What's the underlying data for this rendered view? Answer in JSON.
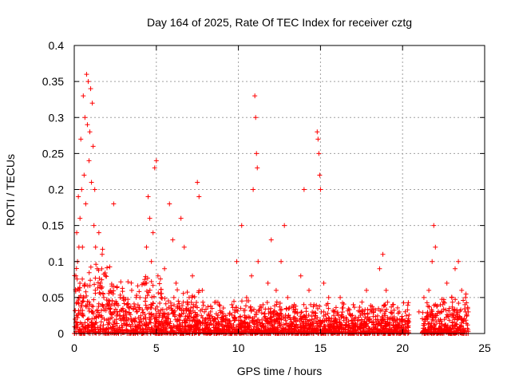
{
  "chart_data": {
    "type": "scatter",
    "title": "Day 164 of 2025, Rate Of TEC Index for receiver cztg",
    "xlabel": "GPS time / hours",
    "ylabel": "ROTI / TECUs",
    "xlim": [
      0,
      25
    ],
    "ylim": [
      0,
      0.4
    ],
    "xticks": [
      0,
      5,
      10,
      15,
      20,
      25
    ],
    "xtick_labels": [
      "0",
      "5",
      "10",
      "15",
      "20",
      "25"
    ],
    "yticks": [
      0,
      0.05,
      0.1,
      0.15,
      0.2,
      0.25,
      0.3,
      0.35,
      0.4
    ],
    "ytick_labels": [
      "0",
      "0.05",
      "0.1",
      "0.15",
      "0.2",
      "0.25",
      "0.3",
      "0.35",
      "0.4"
    ],
    "grid": true,
    "marker": "+",
    "series": [
      {
        "name": "ROTI",
        "color": "#ff0000",
        "points": [
          [
            0.05,
            0.02
          ],
          [
            0.1,
            0.08
          ],
          [
            0.15,
            0.14
          ],
          [
            0.2,
            0.1
          ],
          [
            0.25,
            0.19
          ],
          [
            0.3,
            0.06
          ],
          [
            0.35,
            0.16
          ],
          [
            0.4,
            0.27
          ],
          [
            0.45,
            0.2
          ],
          [
            0.5,
            0.12
          ],
          [
            0.55,
            0.33
          ],
          [
            0.6,
            0.22
          ],
          [
            0.65,
            0.3
          ],
          [
            0.7,
            0.18
          ],
          [
            0.75,
            0.36
          ],
          [
            0.8,
            0.29
          ],
          [
            0.85,
            0.35
          ],
          [
            0.9,
            0.24
          ],
          [
            0.95,
            0.28
          ],
          [
            1.0,
            0.34
          ],
          [
            1.05,
            0.21
          ],
          [
            1.1,
            0.32
          ],
          [
            1.15,
            0.26
          ],
          [
            1.2,
            0.15
          ],
          [
            1.25,
            0.2
          ],
          [
            1.3,
            0.12
          ],
          [
            1.4,
            0.09
          ],
          [
            1.5,
            0.14
          ],
          [
            1.6,
            0.07
          ],
          [
            1.7,
            0.11
          ],
          [
            1.8,
            0.05
          ],
          [
            1.9,
            0.08
          ],
          [
            2.0,
            0.04
          ],
          [
            2.2,
            0.06
          ],
          [
            2.4,
            0.18
          ],
          [
            2.6,
            0.03
          ],
          [
            2.8,
            0.05
          ],
          [
            3.0,
            0.02
          ],
          [
            3.2,
            0.04
          ],
          [
            3.5,
            0.06
          ],
          [
            3.8,
            0.03
          ],
          [
            4.0,
            0.05
          ],
          [
            4.2,
            0.07
          ],
          [
            4.4,
            0.12
          ],
          [
            4.5,
            0.19
          ],
          [
            4.6,
            0.16
          ],
          [
            4.7,
            0.1
          ],
          [
            4.8,
            0.14
          ],
          [
            4.9,
            0.23
          ],
          [
            5.0,
            0.24
          ],
          [
            5.1,
            0.08
          ],
          [
            5.3,
            0.05
          ],
          [
            5.5,
            0.09
          ],
          [
            5.8,
            0.18
          ],
          [
            6.0,
            0.13
          ],
          [
            6.2,
            0.07
          ],
          [
            6.5,
            0.16
          ],
          [
            6.7,
            0.12
          ],
          [
            7.0,
            0.05
          ],
          [
            7.2,
            0.08
          ],
          [
            7.5,
            0.21
          ],
          [
            7.6,
            0.19
          ],
          [
            7.8,
            0.06
          ],
          [
            8.0,
            0.02
          ],
          [
            8.3,
            0.03
          ],
          [
            8.6,
            0.02
          ],
          [
            9.0,
            0.03
          ],
          [
            9.3,
            0.02
          ],
          [
            9.6,
            0.04
          ],
          [
            9.9,
            0.1
          ],
          [
            10.2,
            0.15
          ],
          [
            10.5,
            0.05
          ],
          [
            10.8,
            0.08
          ],
          [
            10.9,
            0.2
          ],
          [
            11.0,
            0.33
          ],
          [
            11.05,
            0.3
          ],
          [
            11.1,
            0.25
          ],
          [
            11.15,
            0.23
          ],
          [
            11.2,
            0.1
          ],
          [
            11.5,
            0.04
          ],
          [
            11.8,
            0.07
          ],
          [
            12.0,
            0.13
          ],
          [
            12.3,
            0.06
          ],
          [
            12.6,
            0.1
          ],
          [
            12.8,
            0.15
          ],
          [
            13.0,
            0.05
          ],
          [
            13.4,
            0.04
          ],
          [
            13.8,
            0.08
          ],
          [
            14.0,
            0.2
          ],
          [
            14.3,
            0.06
          ],
          [
            14.6,
            0.04
          ],
          [
            14.8,
            0.28
          ],
          [
            14.85,
            0.27
          ],
          [
            14.9,
            0.25
          ],
          [
            14.95,
            0.22
          ],
          [
            15.0,
            0.2
          ],
          [
            15.2,
            0.07
          ],
          [
            15.5,
            0.05
          ],
          [
            15.8,
            0.03
          ],
          [
            16.2,
            0.05
          ],
          [
            16.6,
            0.02
          ],
          [
            17.0,
            0.04
          ],
          [
            17.4,
            0.03
          ],
          [
            17.8,
            0.06
          ],
          [
            18.2,
            0.03
          ],
          [
            18.6,
            0.09
          ],
          [
            18.8,
            0.11
          ],
          [
            19.0,
            0.06
          ],
          [
            19.4,
            0.04
          ],
          [
            19.8,
            0.03
          ],
          [
            20.0,
            0.02
          ],
          [
            20.3,
            0.01
          ],
          [
            21.0,
            0.03
          ],
          [
            21.3,
            0.05
          ],
          [
            21.6,
            0.06
          ],
          [
            21.8,
            0.1
          ],
          [
            21.9,
            0.15
          ],
          [
            22.0,
            0.12
          ],
          [
            22.3,
            0.04
          ],
          [
            22.7,
            0.07
          ],
          [
            23.0,
            0.05
          ],
          [
            23.2,
            0.09
          ],
          [
            23.4,
            0.1
          ],
          [
            23.6,
            0.06
          ],
          [
            23.8,
            0.04
          ],
          [
            24.0,
            0.03
          ]
        ],
        "dense_bands": [
          {
            "x_from": 0.0,
            "x_to": 2.2,
            "y_from": 0.0,
            "y_to": 0.14
          },
          {
            "x_from": 2.2,
            "x_to": 5.5,
            "y_from": 0.0,
            "y_to": 0.09
          },
          {
            "x_from": 5.5,
            "x_to": 8.0,
            "y_from": 0.0,
            "y_to": 0.07
          },
          {
            "x_from": 8.0,
            "x_to": 20.4,
            "y_from": 0.0,
            "y_to": 0.05
          },
          {
            "x_from": 21.2,
            "x_to": 24.0,
            "y_from": 0.0,
            "y_to": 0.06
          }
        ]
      }
    ]
  }
}
